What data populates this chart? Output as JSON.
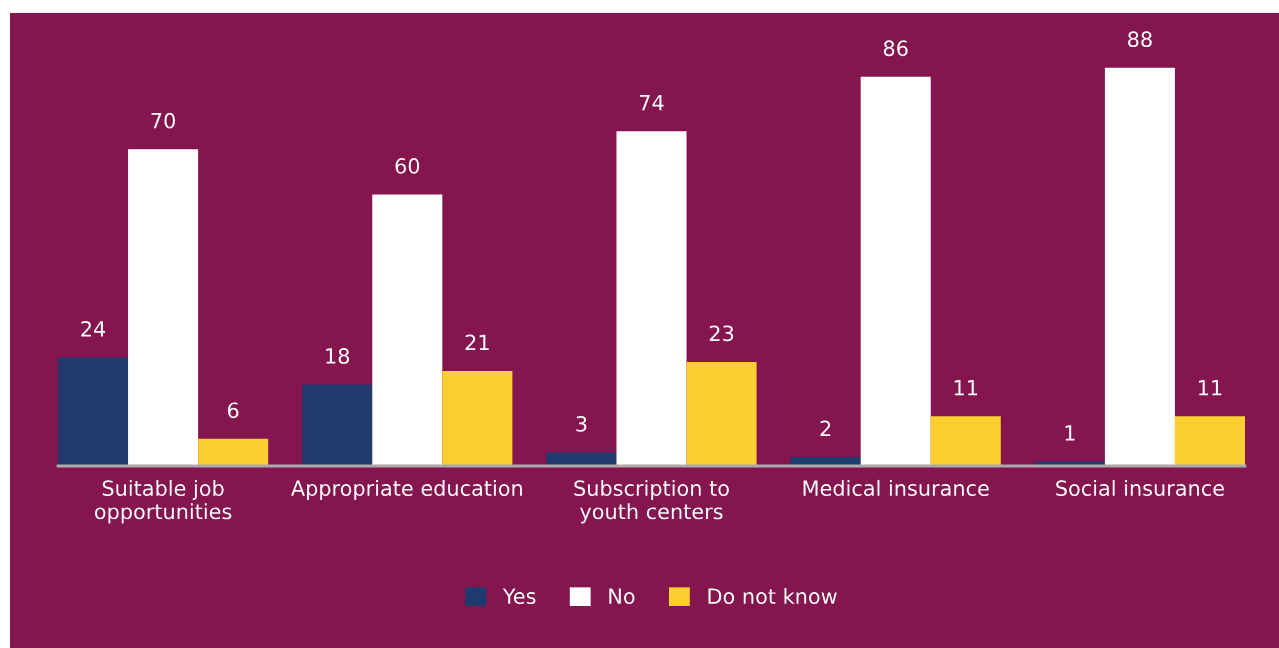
{
  "chart_data": {
    "type": "bar",
    "categories": [
      "Suitable job\nopportunities",
      "Appropriate education",
      "Subscription to\nyouth centers",
      "Medical insurance",
      "Social insurance"
    ],
    "series": [
      {
        "name": "Yes",
        "color": "#1f3a6e",
        "values": [
          24,
          18,
          3,
          2,
          1
        ]
      },
      {
        "name": "No",
        "color": "#ffffff",
        "values": [
          70,
          60,
          74,
          86,
          88
        ]
      },
      {
        "name": "Do not know",
        "color": "#fccf30",
        "values": [
          6,
          21,
          23,
          11,
          11
        ]
      }
    ],
    "data_labels": true,
    "legend": "bottom",
    "grid": false,
    "tick_labels": "x"
  }
}
